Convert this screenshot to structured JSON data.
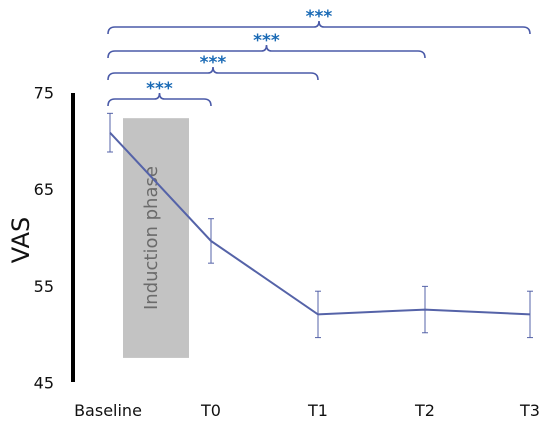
{
  "chart_data": {
    "type": "line",
    "categories": [
      "Baseline",
      "T0",
      "T1",
      "T2",
      "T3"
    ],
    "series": [
      {
        "values": [
          71.0,
          59.8,
          52.2,
          52.7,
          52.2
        ],
        "error": [
          2.0,
          2.3,
          2.4,
          2.4,
          2.4
        ]
      }
    ],
    "ylabel": "VAS",
    "xlabel": "",
    "ylim": [
      45,
      75
    ],
    "yticks": [
      "75",
      "65",
      "55",
      "45"
    ],
    "shaded_region": {
      "label": "Induction phase",
      "y_from": 47.7,
      "y_to": 72.5
    },
    "significance": [
      {
        "from": "Baseline",
        "to": "T0",
        "label": "***"
      },
      {
        "from": "Baseline",
        "to": "T1",
        "label": "***"
      },
      {
        "from": "Baseline",
        "to": "T2",
        "label": "***"
      },
      {
        "from": "Baseline",
        "to": "T3",
        "label": "***"
      }
    ],
    "colors": {
      "line": "#5563a8",
      "bracket": "#4a5aa8",
      "stars": "#1a6ab5",
      "shade": "#c3c3c3",
      "axis": "#000000"
    },
    "grid": false
  }
}
